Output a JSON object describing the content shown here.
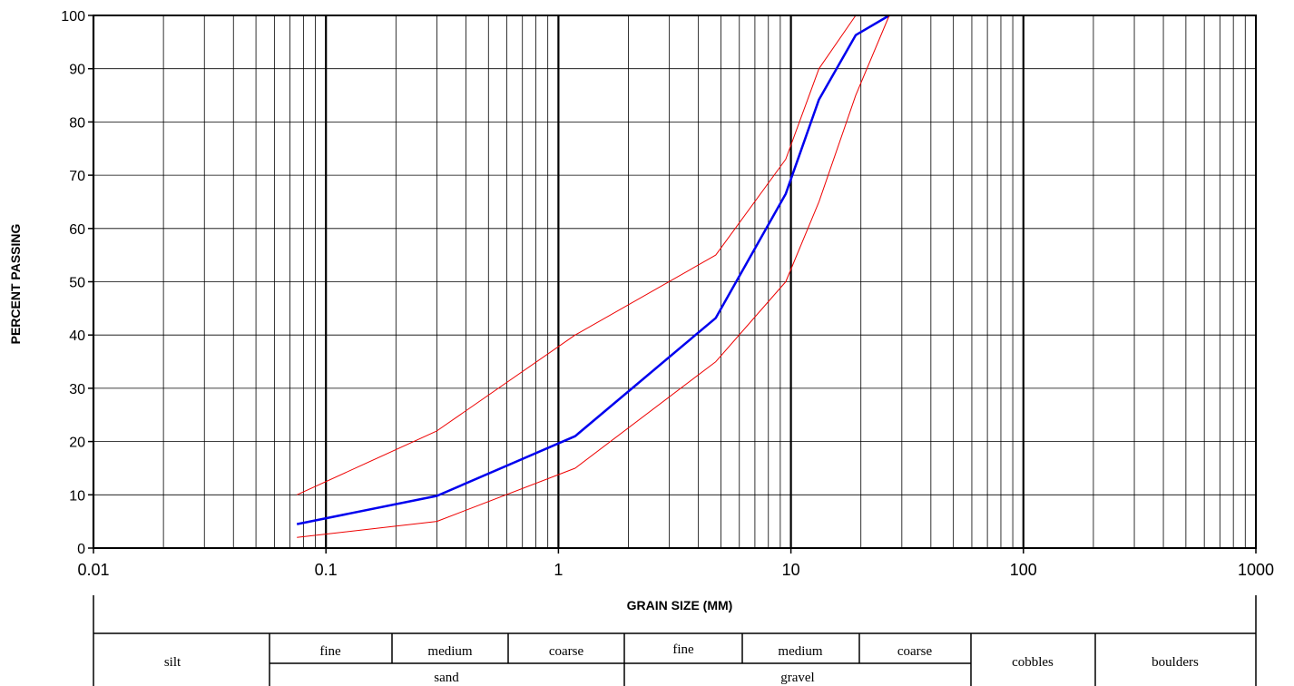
{
  "chart_data": {
    "type": "line",
    "title": "",
    "xlabel": "GRAIN SIZE (MM)",
    "ylabel": "PERCENT PASSING",
    "xscale": "log",
    "xlim": [
      0.01,
      1000
    ],
    "ylim": [
      0,
      100
    ],
    "grid": true,
    "xticks": [
      "0.01",
      "0.1",
      "1",
      "10",
      "100",
      "1000"
    ],
    "yticks": [
      "0",
      "10",
      "20",
      "30",
      "40",
      "50",
      "60",
      "70",
      "80",
      "90",
      "100"
    ],
    "series": [
      {
        "color": "#0000ee",
        "width": 2.5,
        "x": [
          0.075,
          0.3,
          1.18,
          4.75,
          9.5,
          13.2,
          19,
          26.5
        ],
        "y": [
          4.5,
          9.8,
          21,
          43.2,
          66.5,
          84.2,
          96.3,
          100
        ]
      },
      {
        "color": "#ee0000",
        "width": 1,
        "x": [
          0.075,
          0.3,
          1.18,
          4.75,
          9.5,
          13.2,
          19,
          26.5
        ],
        "y": [
          10,
          22,
          40,
          55,
          73,
          90,
          100,
          100
        ]
      },
      {
        "color": "#ee0000",
        "width": 1,
        "x": [
          0.075,
          0.3,
          1.18,
          4.75,
          9.5,
          13.2,
          19,
          26.5
        ],
        "y": [
          2,
          5,
          15,
          35,
          50,
          65,
          85,
          100
        ]
      }
    ]
  },
  "classification": {
    "silt": "silt",
    "sand": {
      "label": "sand",
      "fine": "fine",
      "medium": "medium",
      "coarse": "coarse"
    },
    "gravel": {
      "label": "gravel",
      "fine": "fine",
      "medium": "medium",
      "coarse": "coarse"
    },
    "cobbles": "cobbles",
    "boulders": "boulders"
  }
}
